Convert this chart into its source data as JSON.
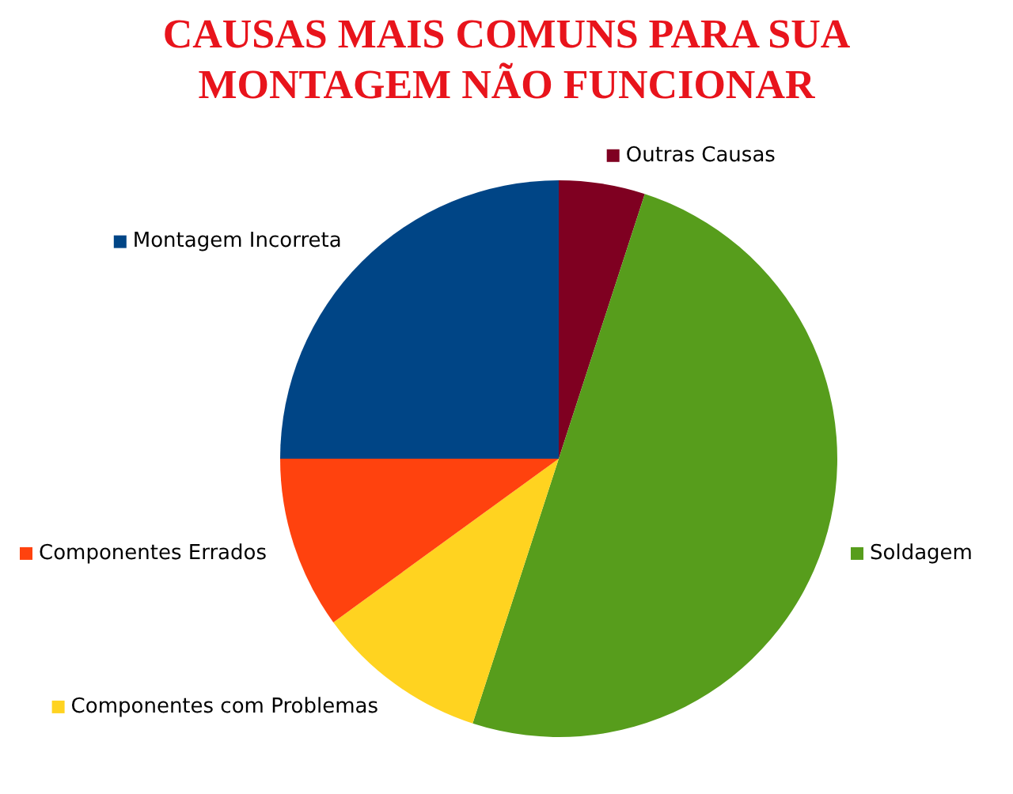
{
  "chart_data": {
    "type": "pie",
    "legend": "top left",
    "title": "CAUSAS MAIS COMUNS PARA SUA MONTAGEM NÃO FUNCIONAR",
    "categories": [
      "Outras Causas",
      "Soldagem",
      "Componentes com Problemas",
      "Componentes Errados",
      "Montagem Incorreta"
    ],
    "values": [
      5,
      50,
      10,
      10,
      25
    ],
    "colors": [
      "#7f0021",
      "#579d1c",
      "#ffd320",
      "#ff420e",
      "#004586"
    ]
  }
}
